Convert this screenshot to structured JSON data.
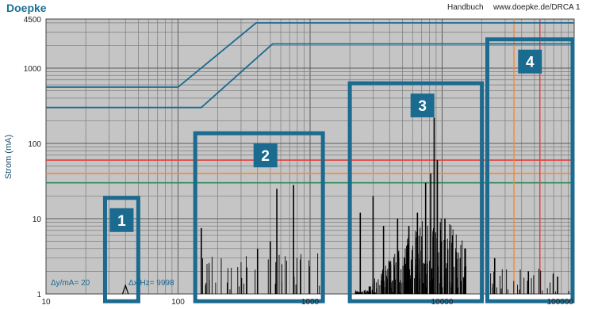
{
  "header": {
    "brand": "Doepke",
    "document": "Handbuch",
    "url": "www.doepke.de/DRCA 1"
  },
  "chart_data": {
    "type": "line",
    "x_scale": "log",
    "y_scale": "log",
    "xlim": [
      10,
      100000
    ],
    "ylim": [
      1,
      4500
    ],
    "ylabel": "Strom (mA)",
    "xlabel": "",
    "x_ticks": [
      {
        "value": 10,
        "label": "10"
      },
      {
        "value": 100,
        "label": "100"
      },
      {
        "value": 1000,
        "label": "1000"
      },
      {
        "value": 10000,
        "label": "10000"
      },
      {
        "value": 100000,
        "label": "100000"
      }
    ],
    "y_ticks": [
      {
        "value": 1,
        "label": "1"
      },
      {
        "value": 10,
        "label": "10"
      },
      {
        "value": 100,
        "label": "100"
      },
      {
        "value": 1000,
        "label": "1000"
      },
      {
        "value": 4500,
        "label": "4500"
      }
    ],
    "grid": true,
    "info_left": "Δy/mA= 20",
    "info_right": "Δx/Hz=  9998",
    "limit_curves": [
      {
        "color": "#1b6a8f",
        "points": [
          [
            10,
            560
          ],
          [
            100,
            560
          ],
          [
            390,
            4000
          ],
          [
            100000,
            4000
          ]
        ]
      },
      {
        "color": "#1b6a8f",
        "points": [
          [
            10,
            300
          ],
          [
            150,
            300
          ],
          [
            520,
            2100
          ],
          [
            100000,
            2100
          ]
        ]
      }
    ],
    "horizontal_lines": [
      {
        "y": 60,
        "color": "#e43d3a"
      },
      {
        "y": 40,
        "color": "#f08a3a"
      },
      {
        "y": 30,
        "color": "#2e8b57"
      }
    ],
    "vertical_lines": [
      {
        "x": 35000,
        "color": "#f08a3a"
      },
      {
        "x": 55000,
        "color": "#e43d3a"
      }
    ],
    "spectrum_peaks": [
      {
        "x": 150,
        "y": 7.5
      },
      {
        "x": 400,
        "y": 4
      },
      {
        "x": 500,
        "y": 5
      },
      {
        "x": 560,
        "y": 25
      },
      {
        "x": 750,
        "y": 28
      },
      {
        "x": 2400,
        "y": 12
      },
      {
        "x": 3000,
        "y": 20
      },
      {
        "x": 3600,
        "y": 8
      },
      {
        "x": 4600,
        "y": 10
      },
      {
        "x": 5600,
        "y": 8
      },
      {
        "x": 6500,
        "y": 12
      },
      {
        "x": 7500,
        "y": 30
      },
      {
        "x": 8200,
        "y": 40
      },
      {
        "x": 8700,
        "y": 220
      },
      {
        "x": 9200,
        "y": 60
      },
      {
        "x": 10500,
        "y": 10
      },
      {
        "x": 12000,
        "y": 6
      },
      {
        "x": 15000,
        "y": 4
      },
      {
        "x": 25000,
        "y": 3
      },
      {
        "x": 45000,
        "y": 2
      },
      {
        "x": 75000,
        "y": 1.7
      }
    ],
    "regions": [
      {
        "label": "1",
        "x0": 28,
        "x1": 50,
        "y0": 0.8,
        "y1": 18
      },
      {
        "label": "2",
        "x0": 135,
        "x1": 1250,
        "y0": 0.8,
        "y1": 130
      },
      {
        "label": "3",
        "x0": 2000,
        "x1": 20000,
        "y0": 0.8,
        "y1": 600
      },
      {
        "label": "4",
        "x0": 22000,
        "x1": 100000,
        "y0": 0.8,
        "y1": 2300
      }
    ]
  }
}
